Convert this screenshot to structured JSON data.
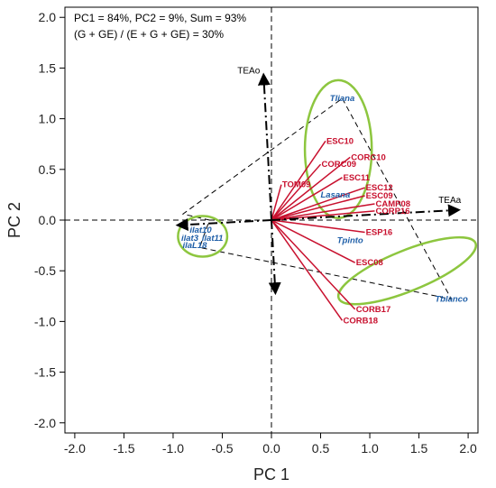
{
  "chart_data": {
    "type": "scatter",
    "subtype": "GGE biplot",
    "xlabel": "PC 1",
    "ylabel": "PC 2",
    "xlim": [
      -2.1,
      2.1
    ],
    "ylim": [
      -2.1,
      2.1
    ],
    "xticks": [
      "-2.0",
      "-1.5",
      "-1.0",
      "-0.5",
      "0.0",
      "0.5",
      "1.0",
      "1.5",
      "2.0"
    ],
    "yticks": [
      "-2.0",
      "-1.5",
      "-1.0",
      "-0.5",
      "0.0",
      "0.5",
      "1.0",
      "1.5",
      "2.0"
    ],
    "grid": false,
    "annotations": [
      "PC1 =  84%, PC2 = 9%, Sum = 93%",
      "(G + GE) / (E + G + GE) = 30%"
    ],
    "colors": {
      "environment": "#c8102e",
      "genotype": "#1f5fa8",
      "ellipse": "#8dc63f",
      "env_vector": "#c8102e",
      "polygon": "#000000"
    },
    "environments": [
      {
        "label": "ESC10",
        "x": 0.55,
        "y": 0.78
      },
      {
        "label": "CORC10",
        "x": 0.8,
        "y": 0.62
      },
      {
        "label": "CORC09",
        "x": 0.5,
        "y": 0.55
      },
      {
        "label": "ESC11",
        "x": 0.72,
        "y": 0.42
      },
      {
        "label": "TOM09",
        "x": 0.1,
        "y": 0.35
      },
      {
        "label": "ESC12",
        "x": 0.95,
        "y": 0.32
      },
      {
        "label": "ESC09",
        "x": 0.95,
        "y": 0.24
      },
      {
        "label": "CAMP08",
        "x": 1.05,
        "y": 0.16
      },
      {
        "label": "CORP16",
        "x": 1.05,
        "y": 0.09
      },
      {
        "label": "ESP16",
        "x": 0.95,
        "y": -0.12
      },
      {
        "label": "ESC08",
        "x": 0.85,
        "y": -0.42
      },
      {
        "label": "CORB17",
        "x": 0.85,
        "y": -0.88
      },
      {
        "label": "CORB18",
        "x": 0.72,
        "y": -0.99
      }
    ],
    "genotypes": [
      {
        "label": "Tliana",
        "x": 0.72,
        "y": 1.2
      },
      {
        "label": "Lasana",
        "x": 0.65,
        "y": 0.25
      },
      {
        "label": "Tpinto",
        "x": 0.8,
        "y": -0.2
      },
      {
        "label": "Tblanco",
        "x": 1.83,
        "y": -0.78
      },
      {
        "label": "ilat10",
        "x": -0.72,
        "y": -0.1
      },
      {
        "label": "ilat3",
        "x": -0.83,
        "y": -0.18
      },
      {
        "label": "ilat11",
        "x": -0.6,
        "y": -0.18
      },
      {
        "label": "ilaL18",
        "x": -0.78,
        "y": -0.25
      }
    ],
    "polygon": [
      {
        "x": 0.72,
        "y": 1.2
      },
      {
        "x": 1.83,
        "y": -0.78
      },
      {
        "x": -0.73,
        "y": -0.27
      },
      {
        "x": -0.63,
        "y": 0.0
      },
      {
        "x": -0.9,
        "y": 0.06
      }
    ],
    "traits": [
      {
        "label": "TEAo",
        "x": -0.08,
        "y": 1.43
      },
      {
        "label": "TEAa",
        "x": 1.9,
        "y": 0.1
      }
    ],
    "ellipses": [
      {
        "cx": 0.68,
        "cy": 0.7,
        "rx": 0.34,
        "ry": 0.68
      },
      {
        "cx": 1.38,
        "cy": -0.5,
        "rx": 0.75,
        "ry": 0.2,
        "rot": -22
      },
      {
        "cx": -0.7,
        "cy": -0.16,
        "rx": 0.25,
        "ry": 0.2
      }
    ]
  }
}
